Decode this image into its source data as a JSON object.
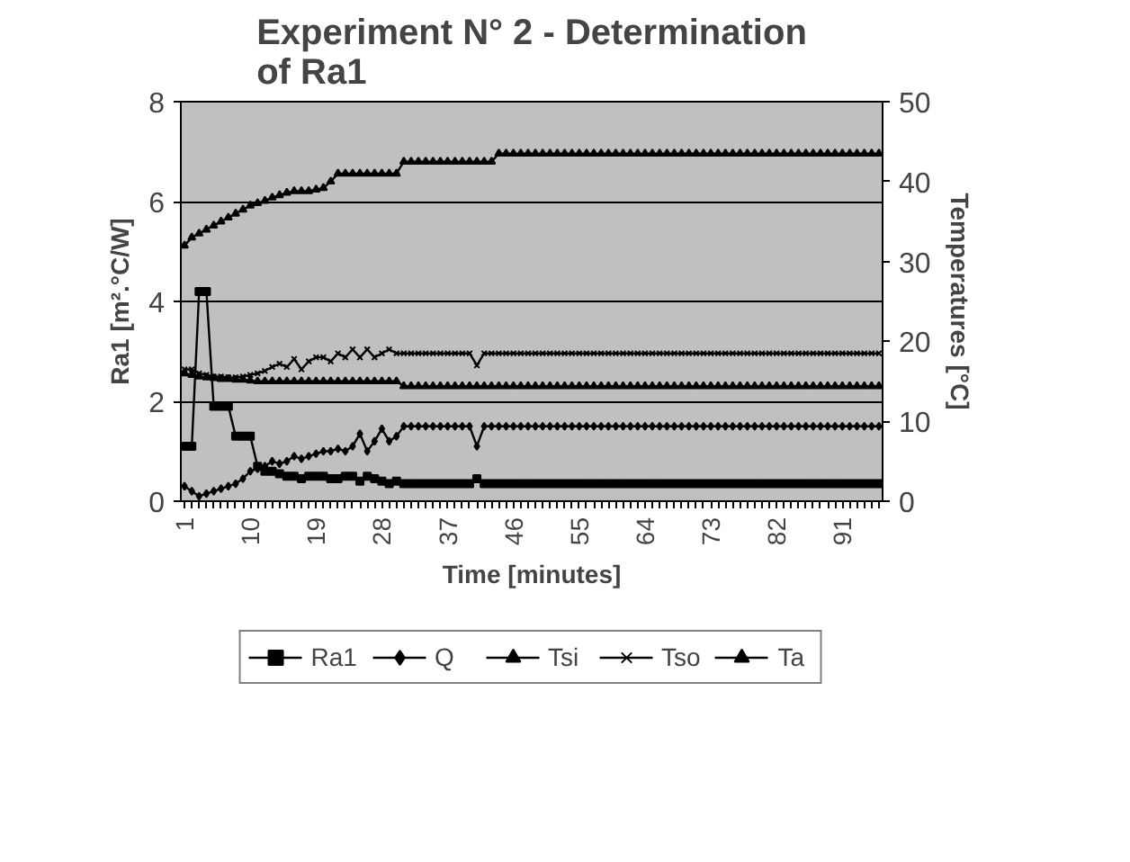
{
  "chart_data": {
    "type": "line",
    "title": "Experiment N° 2 - Determination of Ra1",
    "xlabel": "Time [minutes]",
    "ylabel": "Ra1 [m².°C/W]",
    "y2label": "Temperatures [°C]",
    "categories": [
      "1",
      null,
      null,
      null,
      null,
      null,
      null,
      null,
      null,
      "10",
      null,
      null,
      null,
      null,
      null,
      null,
      null,
      null,
      "19",
      null,
      null,
      null,
      null,
      null,
      null,
      null,
      null,
      "28",
      null,
      null,
      null,
      null,
      null,
      null,
      null,
      null,
      "37",
      null,
      null,
      null,
      null,
      null,
      null,
      null,
      null,
      "46",
      null,
      null,
      null,
      null,
      null,
      null,
      null,
      null,
      "55",
      null,
      null,
      null,
      null,
      null,
      null,
      null,
      null,
      "64",
      null,
      null,
      null,
      null,
      null,
      null,
      null,
      null,
      "73",
      null,
      null,
      null,
      null,
      null,
      null,
      null,
      null,
      "82",
      null,
      null,
      null,
      null,
      null,
      null,
      null,
      null,
      "91",
      null,
      null,
      null,
      null,
      null
    ],
    "ylim": [
      0,
      8
    ],
    "yticks": [
      0,
      2,
      4,
      6,
      8
    ],
    "y2lim": [
      0,
      50
    ],
    "y2ticks": [
      0,
      10,
      20,
      30,
      40,
      50
    ],
    "grid": "y",
    "legend": "bottom",
    "series": [
      {
        "name": "Ra1",
        "color": "#000000",
        "marker": "square",
        "values": [
          1.1,
          1.1,
          4.2,
          4.2,
          1.9,
          1.9,
          1.9,
          1.3,
          1.3,
          1.3,
          0.7,
          0.6,
          0.6,
          0.55,
          0.5,
          0.5,
          0.45,
          0.5,
          0.5,
          0.5,
          0.45,
          0.45,
          0.5,
          0.5,
          0.4,
          0.5,
          0.45,
          0.4,
          0.35,
          0.4,
          0.35,
          0.35,
          0.35,
          0.35,
          0.35,
          0.35,
          0.35,
          0.35,
          0.35,
          0.35,
          0.45,
          0.35,
          0.35,
          0.35,
          0.35,
          0.35,
          0.35,
          0.35,
          0.35,
          0.35,
          0.35,
          0.35,
          0.35,
          0.35,
          0.35,
          0.35,
          0.35,
          0.35,
          0.35,
          0.35,
          0.35,
          0.35,
          0.35,
          0.35,
          0.35,
          0.35,
          0.35,
          0.35,
          0.35,
          0.35,
          0.35,
          0.35,
          0.35,
          0.35,
          0.35,
          0.35,
          0.35,
          0.35,
          0.35,
          0.35,
          0.35,
          0.35,
          0.35,
          0.35,
          0.35,
          0.35,
          0.35,
          0.35,
          0.35,
          0.35,
          0.35,
          0.35,
          0.35,
          0.35,
          0.35,
          0.35
        ]
      },
      {
        "name": "Q",
        "color": "#000000",
        "marker": "diamond",
        "values": [
          0.3,
          0.2,
          0.1,
          0.15,
          0.2,
          0.25,
          0.3,
          0.35,
          0.45,
          0.6,
          0.65,
          0.7,
          0.8,
          0.75,
          0.8,
          0.9,
          0.85,
          0.9,
          0.95,
          1.0,
          1.0,
          1.05,
          1.0,
          1.1,
          1.35,
          1.0,
          1.2,
          1.45,
          1.2,
          1.3,
          1.5,
          1.5,
          1.5,
          1.5,
          1.5,
          1.5,
          1.5,
          1.5,
          1.5,
          1.5,
          1.1,
          1.5,
          1.5,
          1.5,
          1.5,
          1.5,
          1.5,
          1.5,
          1.5,
          1.5,
          1.5,
          1.5,
          1.5,
          1.5,
          1.5,
          1.5,
          1.5,
          1.5,
          1.5,
          1.5,
          1.5,
          1.5,
          1.5,
          1.5,
          1.5,
          1.5,
          1.5,
          1.5,
          1.5,
          1.5,
          1.5,
          1.5,
          1.5,
          1.5,
          1.5,
          1.5,
          1.5,
          1.5,
          1.5,
          1.5,
          1.5,
          1.5,
          1.5,
          1.5,
          1.5,
          1.5,
          1.5,
          1.5,
          1.5,
          1.5,
          1.5,
          1.5,
          1.5,
          1.5,
          1.5,
          1.5
        ]
      },
      {
        "name": "Tsi",
        "color": "#000000",
        "marker": "triangle",
        "axis": "y2",
        "values": [
          32,
          33,
          33.5,
          34,
          34.5,
          35,
          35.5,
          36,
          36.5,
          37,
          37.3,
          37.6,
          38,
          38.3,
          38.6,
          38.8,
          38.8,
          38.8,
          39,
          39.2,
          40,
          41,
          41,
          41,
          41,
          41,
          41,
          41,
          41,
          41,
          42.5,
          42.5,
          42.5,
          42.5,
          42.5,
          42.5,
          42.5,
          42.5,
          42.5,
          42.5,
          42.5,
          42.5,
          42.5,
          43.5,
          43.5,
          43.5,
          43.5,
          43.5,
          43.5,
          43.5,
          43.5,
          43.5,
          43.5,
          43.5,
          43.5,
          43.5,
          43.5,
          43.5,
          43.5,
          43.5,
          43.5,
          43.5,
          43.5,
          43.5,
          43.5,
          43.5,
          43.5,
          43.5,
          43.5,
          43.5,
          43.5,
          43.5,
          43.5,
          43.5,
          43.5,
          43.5,
          43.5,
          43.5,
          43.5,
          43.5,
          43.5,
          43.5,
          43.5,
          43.5,
          43.5,
          43.5,
          43.5,
          43.5,
          43.5,
          43.5,
          43.5,
          43.5,
          43.5,
          43.5,
          43.5,
          43.5
        ]
      },
      {
        "name": "Tso",
        "color": "#000000",
        "marker": "cross",
        "axis": "y2",
        "values": [
          16.5,
          16.5,
          16,
          15.8,
          15.6,
          15.6,
          15.5,
          15.5,
          15.6,
          15.8,
          16,
          16.3,
          16.8,
          17.2,
          16.8,
          17.8,
          16.5,
          17.5,
          18,
          18,
          17.5,
          18.5,
          18,
          19,
          18,
          19,
          18,
          18.5,
          19,
          18.5,
          18.5,
          18.5,
          18.5,
          18.5,
          18.5,
          18.5,
          18.5,
          18.5,
          18.5,
          18.5,
          17,
          18.5,
          18.5,
          18.5,
          18.5,
          18.5,
          18.5,
          18.5,
          18.5,
          18.5,
          18.5,
          18.5,
          18.5,
          18.5,
          18.5,
          18.5,
          18.5,
          18.5,
          18.5,
          18.5,
          18.5,
          18.5,
          18.5,
          18.5,
          18.5,
          18.5,
          18.5,
          18.5,
          18.5,
          18.5,
          18.5,
          18.5,
          18.5,
          18.5,
          18.5,
          18.5,
          18.5,
          18.5,
          18.5,
          18.5,
          18.5,
          18.5,
          18.5,
          18.5,
          18.5,
          18.5,
          18.5,
          18.5,
          18.5,
          18.5,
          18.5,
          18.5,
          18.5,
          18.5,
          18.5,
          18.5
        ]
      },
      {
        "name": "Ta",
        "color": "#000000",
        "marker": "triangle",
        "axis": "y2",
        "values": [
          16,
          15.8,
          15.6,
          15.5,
          15.4,
          15.3,
          15.3,
          15.2,
          15.2,
          15.1,
          15,
          15,
          15,
          15,
          15,
          15,
          15,
          15,
          15,
          15,
          15,
          15,
          15,
          15,
          15,
          15,
          15,
          15,
          15,
          15,
          14.4,
          14.4,
          14.4,
          14.4,
          14.4,
          14.4,
          14.4,
          14.4,
          14.4,
          14.4,
          14.4,
          14.4,
          14.4,
          14.4,
          14.4,
          14.4,
          14.4,
          14.4,
          14.4,
          14.4,
          14.4,
          14.4,
          14.4,
          14.4,
          14.4,
          14.4,
          14.4,
          14.4,
          14.4,
          14.4,
          14.4,
          14.4,
          14.4,
          14.4,
          14.4,
          14.4,
          14.4,
          14.4,
          14.4,
          14.4,
          14.4,
          14.4,
          14.4,
          14.4,
          14.4,
          14.4,
          14.4,
          14.4,
          14.4,
          14.4,
          14.4,
          14.4,
          14.4,
          14.4,
          14.4,
          14.4,
          14.4,
          14.4,
          14.4,
          14.4,
          14.4,
          14.4,
          14.4,
          14.4,
          14.4,
          14.4
        ]
      }
    ]
  }
}
